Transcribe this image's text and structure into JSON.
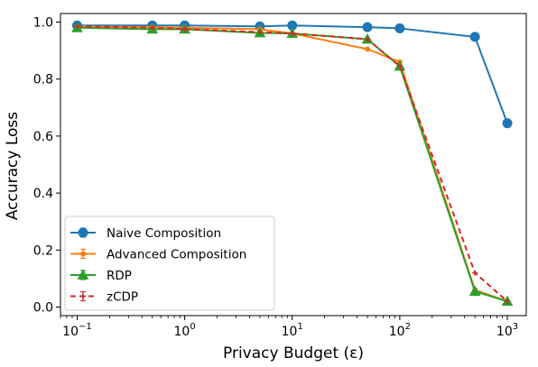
{
  "chart_data": {
    "type": "line",
    "xlabel": "Privacy Budget (ε)",
    "ylabel": "Accuracy Loss",
    "xscale": "log",
    "xlim": [
      0.07,
      1500
    ],
    "ylim": [
      -0.03,
      1.03
    ],
    "xticks": [
      0.1,
      1,
      10,
      100,
      1000
    ],
    "xtick_labels": [
      {
        "base": "10",
        "exp": "−1"
      },
      {
        "base": "10",
        "exp": "0"
      },
      {
        "base": "10",
        "exp": "1"
      },
      {
        "base": "10",
        "exp": "2"
      },
      {
        "base": "10",
        "exp": "3"
      }
    ],
    "yticks": [
      0.0,
      0.2,
      0.4,
      0.6,
      0.8,
      1.0
    ],
    "ytick_labels": [
      "0.0",
      "0.2",
      "0.4",
      "0.6",
      "0.8",
      "1.0"
    ],
    "grid": false,
    "legend_position": "lower-left",
    "series": [
      {
        "name": "Naive Composition",
        "color": "#1f77b4",
        "marker": "circle",
        "linestyle": "solid",
        "x": [
          0.1,
          0.5,
          1,
          5,
          10,
          50,
          100,
          500,
          1000
        ],
        "y": [
          0.988,
          0.988,
          0.988,
          0.985,
          0.988,
          0.982,
          0.978,
          0.948,
          0.645
        ]
      },
      {
        "name": "Advanced Composition",
        "color": "#ff7f0e",
        "marker": "small-circle",
        "linestyle": "solid",
        "x": [
          0.1,
          0.5,
          1,
          5,
          10,
          50,
          100,
          500,
          1000
        ],
        "y": [
          0.985,
          0.982,
          0.98,
          0.975,
          0.96,
          0.905,
          0.86,
          0.06,
          0.02
        ]
      },
      {
        "name": "RDP",
        "color": "#2ca02c",
        "marker": "triangle",
        "linestyle": "solid",
        "x": [
          0.1,
          0.5,
          1,
          5,
          10,
          50,
          100,
          500,
          1000
        ],
        "y": [
          0.98,
          0.975,
          0.975,
          0.962,
          0.96,
          0.94,
          0.845,
          0.055,
          0.02
        ]
      },
      {
        "name": "zCDP",
        "color": "#d62728",
        "marker": "plus",
        "linestyle": "dashed",
        "x": [
          0.1,
          0.5,
          1,
          5,
          10,
          50,
          100,
          500,
          1000
        ],
        "y": [
          0.985,
          0.98,
          0.975,
          0.965,
          0.96,
          0.94,
          0.845,
          0.12,
          0.02
        ]
      }
    ]
  }
}
